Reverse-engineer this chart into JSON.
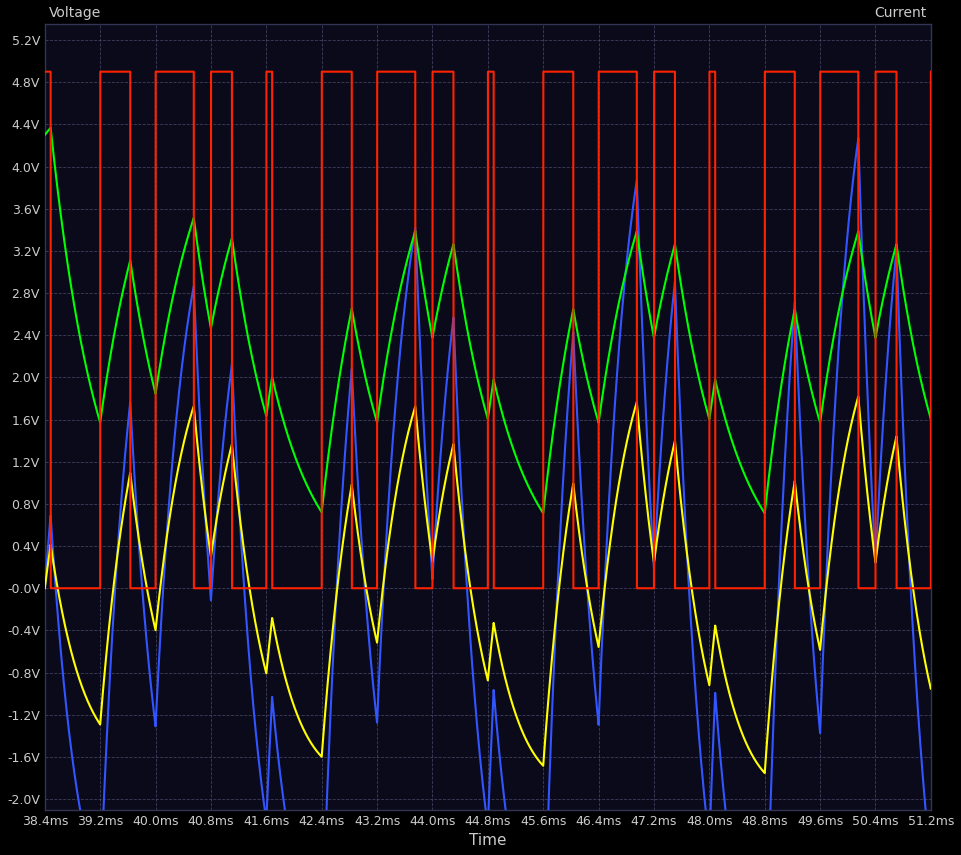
{
  "background_color": "#000000",
  "plot_bg_color": "#0a0a1a",
  "grid_color": "#555577",
  "title_left": "Voltage",
  "title_right": "Current",
  "xlabel": "Time",
  "x_start_ms": 38.4,
  "x_end_ms": 51.2,
  "x_ticks_ms": [
    38.4,
    39.2,
    40.0,
    40.8,
    41.6,
    42.4,
    43.2,
    44.0,
    44.8,
    45.6,
    46.4,
    47.2,
    48.0,
    48.8,
    49.6,
    50.4,
    51.2
  ],
  "y_ticks": [
    -2.0,
    -1.6,
    -1.2,
    -0.8,
    -0.4,
    0.0,
    0.4,
    0.8,
    1.2,
    1.6,
    2.0,
    2.4,
    2.8,
    3.2,
    3.6,
    4.0,
    4.4,
    4.8,
    5.2
  ],
  "y_min": -2.1,
  "y_max": 5.35,
  "pwm_color": "#ff2200",
  "green_color": "#00ff00",
  "blue_color": "#3355ff",
  "yellow_color": "#ffff00",
  "pwm_high": 4.9,
  "pwm_low": 0.0,
  "font_color": "#cccccc",
  "tick_label_size": 9
}
